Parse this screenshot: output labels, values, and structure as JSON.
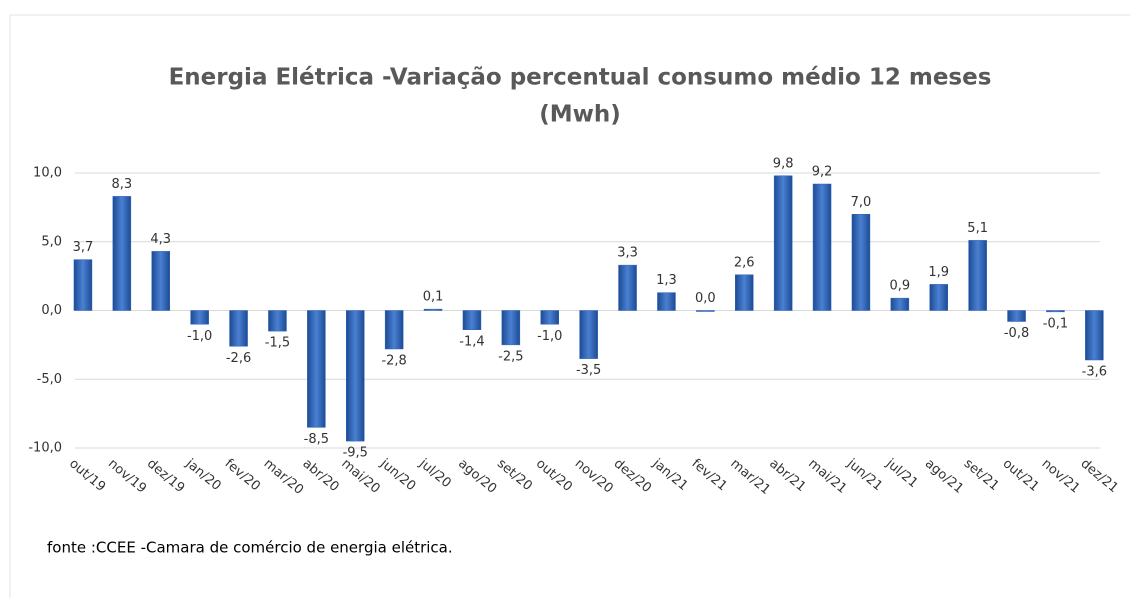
{
  "chart_data": {
    "type": "bar",
    "title": [
      "Energia Elétrica -Variação percentual consumo médio  12 meses",
      "(Mwh)"
    ],
    "categories": [
      "out/19",
      "nov/19",
      "dez/19",
      "jan/20",
      "fev/20",
      "mar/20",
      "abr/20",
      "mai/20",
      "jun/20",
      "jul/20",
      "ago/20",
      "set/20",
      "out/20",
      "nov/20",
      "dez/20",
      "jan/21",
      "fev/21",
      "mar/21",
      "abr/21",
      "mai/21",
      "jun/21",
      "jul/21",
      "ago/21",
      "set/21",
      "out/21",
      "nov/21",
      "dez/21"
    ],
    "values": [
      3.7,
      8.3,
      4.3,
      -1.0,
      -2.6,
      -1.5,
      -8.5,
      -9.5,
      -2.8,
      0.1,
      -1.4,
      -2.5,
      -1.0,
      -3.5,
      3.3,
      1.3,
      0.0,
      2.6,
      9.8,
      9.2,
      7.0,
      0.9,
      1.9,
      5.1,
      -0.8,
      -0.1,
      -3.6
    ],
    "value_labels": [
      "3,7",
      "8,3",
      "4,3",
      "-1,0",
      "-2,6",
      "-1,5",
      "-8,5",
      "-9,5",
      "-2,8",
      "0,1",
      "-1,4",
      "-2,5",
      "-1,0",
      "-3,5",
      "3,3",
      "1,3",
      "0,0",
      "2,6",
      "9,8",
      "9,2",
      "7,0",
      "0,9",
      "1,9",
      "5,1",
      "-0,8",
      "-0,1",
      "-3,6"
    ],
    "color": "#2e65b8",
    "ylim": [
      -10,
      10
    ],
    "yticks": [
      {
        "value": -10,
        "label": "-10,0"
      },
      {
        "value": -5,
        "label": "-5,0"
      },
      {
        "value": 0,
        "label": "0,0"
      },
      {
        "value": 5,
        "label": "5,0"
      },
      {
        "value": 10,
        "label": "10,0"
      }
    ],
    "grid": true,
    "source": "fonte :CCEE -Camara de comércio de energia elétrica."
  }
}
